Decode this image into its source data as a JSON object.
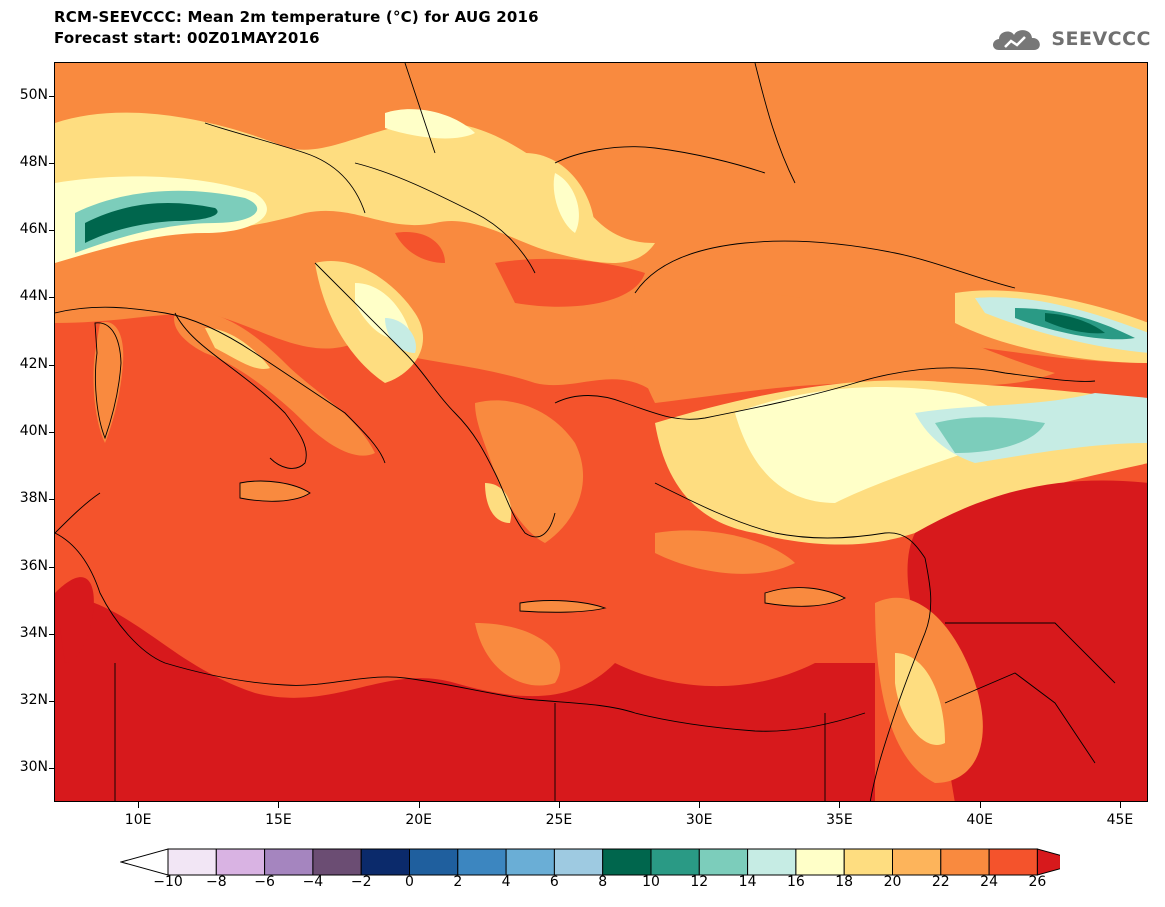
{
  "title_line1": "RCM-SEEVCCC: Mean 2m temperature (°C) for AUG 2016",
  "title_line2": "Forecast start: 00Z01MAY2016",
  "logo_text": "SEEVCCC",
  "map": {
    "lon_range": [
      7,
      46
    ],
    "lat_range": [
      29,
      51
    ],
    "lat_ticks": [
      {
        "value": 50,
        "label": "50N"
      },
      {
        "value": 48,
        "label": "48N"
      },
      {
        "value": 46,
        "label": "46N"
      },
      {
        "value": 44,
        "label": "44N"
      },
      {
        "value": 42,
        "label": "42N"
      },
      {
        "value": 40,
        "label": "40N"
      },
      {
        "value": 38,
        "label": "38N"
      },
      {
        "value": 36,
        "label": "36N"
      },
      {
        "value": 34,
        "label": "34N"
      },
      {
        "value": 32,
        "label": "32N"
      },
      {
        "value": 30,
        "label": "30N"
      }
    ],
    "lon_ticks": [
      {
        "value": 10,
        "label": "10E"
      },
      {
        "value": 15,
        "label": "15E"
      },
      {
        "value": 20,
        "label": "20E"
      },
      {
        "value": 25,
        "label": "25E"
      },
      {
        "value": 30,
        "label": "30E"
      },
      {
        "value": 35,
        "label": "35E"
      },
      {
        "value": 40,
        "label": "40E"
      },
      {
        "value": 45,
        "label": "45E"
      }
    ]
  },
  "colorbar": {
    "labels": [
      "−10",
      "−8",
      "−6",
      "−4",
      "−2",
      "0",
      "2",
      "4",
      "6",
      "8",
      "10",
      "12",
      "14",
      "16",
      "18",
      "20",
      "22",
      "24",
      "26"
    ],
    "colors": [
      "#f2e6f5",
      "#d9b3e3",
      "#a585bf",
      "#6b4d73",
      "#0b2a6b",
      "#1f5f9e",
      "#3c86c0",
      "#6aaed6",
      "#9ecae1",
      "#00664d",
      "#2a9a85",
      "#7ccdbb",
      "#c6ece4",
      "#ffffc8",
      "#fedd80",
      "#fdb45b",
      "#f98a3f",
      "#f4532c"
    ],
    "low_color": "#ffffff",
    "high_color": "#d7191c"
  },
  "colors": {
    "sea_base": "#f4532c",
    "land_warm": "#f98a3f",
    "land_hot": "#d7191c",
    "mountain_cool": "#fedd80",
    "mountain_cold": "#ffffc8",
    "alpine": "#00664d",
    "border": "#000000"
  }
}
